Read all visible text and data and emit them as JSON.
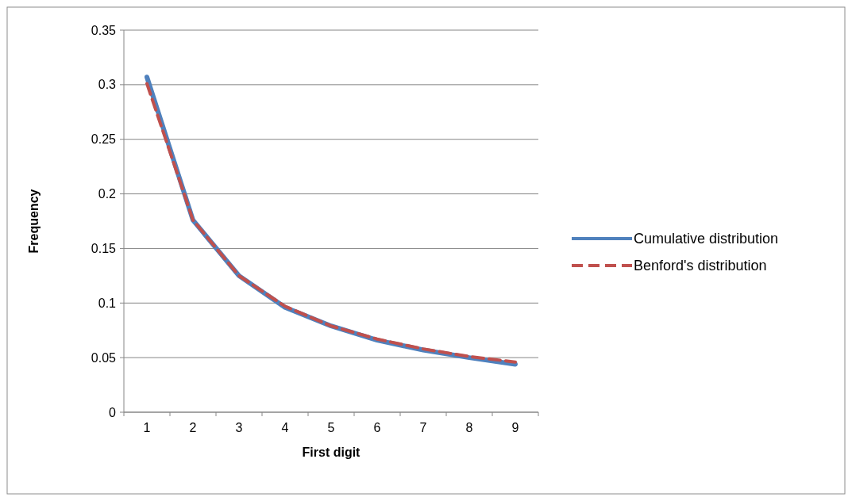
{
  "chart_data": {
    "type": "line",
    "xlabel": "First digit",
    "ylabel": "Frequency",
    "categories": [
      "1",
      "2",
      "3",
      "4",
      "5",
      "6",
      "7",
      "8",
      "9"
    ],
    "series": [
      {
        "name": "Cumulative distribution",
        "color": "#4f81bd",
        "line_style": "solid",
        "values": [
          0.307,
          0.176,
          0.125,
          0.096,
          0.079,
          0.066,
          0.057,
          0.05,
          0.044
        ]
      },
      {
        "name": "Benford's distribution",
        "color": "#c0504d",
        "line_style": "dashed",
        "values": [
          0.301,
          0.176,
          0.125,
          0.097,
          0.079,
          0.067,
          0.058,
          0.051,
          0.046
        ]
      }
    ],
    "ylim": [
      0,
      0.35
    ],
    "yticks": [
      0,
      0.05,
      0.1,
      0.15,
      0.2,
      0.25,
      0.3,
      0.35
    ],
    "grid": "y",
    "legend": "right",
    "marker": "none"
  }
}
